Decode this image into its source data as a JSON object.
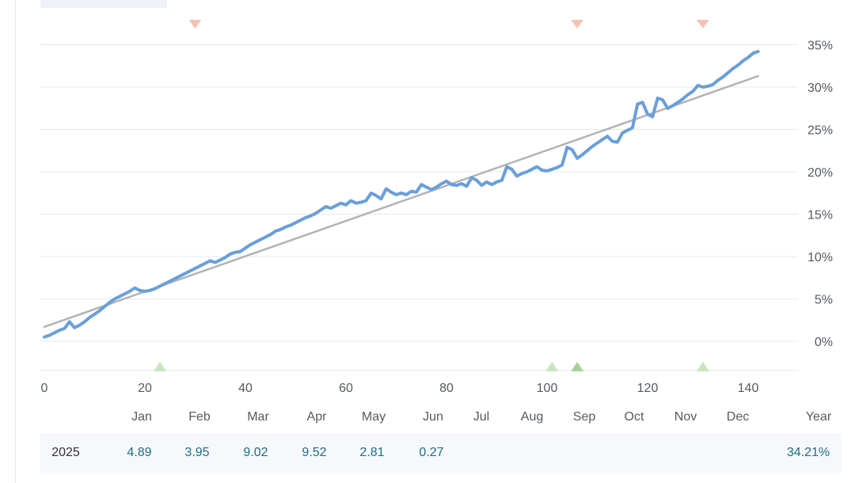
{
  "chart_data": {
    "type": "line",
    "x_ticks": [
      0,
      20,
      40,
      60,
      80,
      100,
      120,
      140
    ],
    "xlim": [
      0,
      150
    ],
    "y_ticks": [
      "35%",
      "30%",
      "25%",
      "20%",
      "15%",
      "10%",
      "5%",
      "0%"
    ],
    "ylim": [
      -3.5,
      37
    ],
    "grid": true,
    "series": [
      {
        "type": "line",
        "color": "#6a9fd8",
        "points": [
          [
            0,
            0.5
          ],
          [
            1,
            0.7
          ],
          [
            2,
            1.0
          ],
          [
            3,
            1.3
          ],
          [
            4,
            1.5
          ],
          [
            5,
            2.3
          ],
          [
            6,
            1.6
          ],
          [
            7,
            1.9
          ],
          [
            8,
            2.3
          ],
          [
            9,
            2.8
          ],
          [
            10,
            3.2
          ],
          [
            11,
            3.6
          ],
          [
            12,
            4.1
          ],
          [
            13,
            4.6
          ],
          [
            14,
            5.0
          ],
          [
            15,
            5.3
          ],
          [
            16,
            5.6
          ],
          [
            17,
            5.9
          ],
          [
            18,
            6.3
          ],
          [
            19,
            6.0
          ],
          [
            20,
            5.9
          ],
          [
            21,
            6.0
          ],
          [
            22,
            6.2
          ],
          [
            23,
            6.5
          ],
          [
            24,
            6.8
          ],
          [
            25,
            7.1
          ],
          [
            26,
            7.4
          ],
          [
            27,
            7.7
          ],
          [
            28,
            8.0
          ],
          [
            29,
            8.3
          ],
          [
            30,
            8.6
          ],
          [
            31,
            8.9
          ],
          [
            32,
            9.2
          ],
          [
            33,
            9.5
          ],
          [
            34,
            9.3
          ],
          [
            35,
            9.6
          ],
          [
            36,
            9.9
          ],
          [
            37,
            10.3
          ],
          [
            38,
            10.5
          ],
          [
            39,
            10.6
          ],
          [
            40,
            11.0
          ],
          [
            41,
            11.4
          ],
          [
            42,
            11.7
          ],
          [
            43,
            12.0
          ],
          [
            44,
            12.3
          ],
          [
            45,
            12.6
          ],
          [
            46,
            13.0
          ],
          [
            47,
            13.2
          ],
          [
            48,
            13.5
          ],
          [
            49,
            13.7
          ],
          [
            50,
            14.0
          ],
          [
            51,
            14.3
          ],
          [
            52,
            14.6
          ],
          [
            53,
            14.8
          ],
          [
            54,
            15.1
          ],
          [
            55,
            15.5
          ],
          [
            56,
            15.9
          ],
          [
            57,
            15.7
          ],
          [
            58,
            16.0
          ],
          [
            59,
            16.3
          ],
          [
            60,
            16.1
          ],
          [
            61,
            16.6
          ],
          [
            62,
            16.3
          ],
          [
            63,
            16.4
          ],
          [
            64,
            16.6
          ],
          [
            65,
            17.5
          ],
          [
            66,
            17.2
          ],
          [
            67,
            16.8
          ],
          [
            68,
            18.0
          ],
          [
            69,
            17.6
          ],
          [
            70,
            17.3
          ],
          [
            71,
            17.5
          ],
          [
            72,
            17.3
          ],
          [
            73,
            17.7
          ],
          [
            74,
            17.6
          ],
          [
            75,
            18.5
          ],
          [
            76,
            18.2
          ],
          [
            77,
            17.9
          ],
          [
            78,
            18.2
          ],
          [
            79,
            18.6
          ],
          [
            80,
            18.9
          ],
          [
            81,
            18.5
          ],
          [
            82,
            18.4
          ],
          [
            83,
            18.6
          ],
          [
            84,
            18.3
          ],
          [
            85,
            19.3
          ],
          [
            86,
            19.0
          ],
          [
            87,
            18.4
          ],
          [
            88,
            18.8
          ],
          [
            89,
            18.5
          ],
          [
            90,
            18.8
          ],
          [
            91,
            19.0
          ],
          [
            92,
            20.6
          ],
          [
            93,
            20.3
          ],
          [
            94,
            19.5
          ],
          [
            95,
            19.8
          ],
          [
            96,
            20.0
          ],
          [
            97,
            20.3
          ],
          [
            98,
            20.6
          ],
          [
            99,
            20.2
          ],
          [
            100,
            20.1
          ],
          [
            101,
            20.3
          ],
          [
            102,
            20.5
          ],
          [
            103,
            20.8
          ],
          [
            104,
            22.9
          ],
          [
            105,
            22.6
          ],
          [
            106,
            21.6
          ],
          [
            107,
            22.0
          ],
          [
            108,
            22.5
          ],
          [
            109,
            23.0
          ],
          [
            110,
            23.4
          ],
          [
            111,
            23.8
          ],
          [
            112,
            24.2
          ],
          [
            113,
            23.6
          ],
          [
            114,
            23.5
          ],
          [
            115,
            24.6
          ],
          [
            116,
            24.9
          ],
          [
            117,
            25.2
          ],
          [
            118,
            28.0
          ],
          [
            119,
            28.2
          ],
          [
            120,
            26.8
          ],
          [
            121,
            26.5
          ],
          [
            122,
            28.7
          ],
          [
            123,
            28.5
          ],
          [
            124,
            27.5
          ],
          [
            125,
            27.8
          ],
          [
            126,
            28.2
          ],
          [
            127,
            28.6
          ],
          [
            128,
            29.1
          ],
          [
            129,
            29.5
          ],
          [
            130,
            30.2
          ],
          [
            131,
            30.0
          ],
          [
            132,
            30.1
          ],
          [
            133,
            30.3
          ],
          [
            134,
            30.8
          ],
          [
            135,
            31.2
          ],
          [
            136,
            31.7
          ],
          [
            137,
            32.2
          ],
          [
            138,
            32.6
          ],
          [
            139,
            33.1
          ],
          [
            140,
            33.5
          ],
          [
            141,
            34.0
          ],
          [
            142,
            34.21
          ]
        ]
      },
      {
        "type": "trend",
        "color": "#b1b3b6",
        "points": [
          [
            0,
            1.7
          ],
          [
            142,
            31.3
          ]
        ]
      }
    ],
    "down_markers_x": [
      30,
      106,
      131
    ],
    "up_markers_x": [
      23,
      101,
      106,
      131
    ],
    "months": [
      "Jan",
      "Feb",
      "Mar",
      "Apr",
      "May",
      "Jun",
      "Jul",
      "Aug",
      "Sep",
      "Oct",
      "Nov",
      "Dec"
    ],
    "colors": {
      "down_marker": "#f2c3b4",
      "up_marker": "#c9e4be",
      "up_marker_dark": "#a7d29a",
      "grid": "#e6e8eb",
      "tick_text": "#555a60"
    }
  },
  "returns_table": {
    "year_header": "Year",
    "rows": [
      {
        "year": "2025",
        "months": [
          "4.89",
          "3.95",
          "9.02",
          "9.52",
          "2.81",
          "0.27",
          "",
          "",
          "",
          "",
          "",
          ""
        ],
        "total": "34.21%"
      }
    ]
  }
}
